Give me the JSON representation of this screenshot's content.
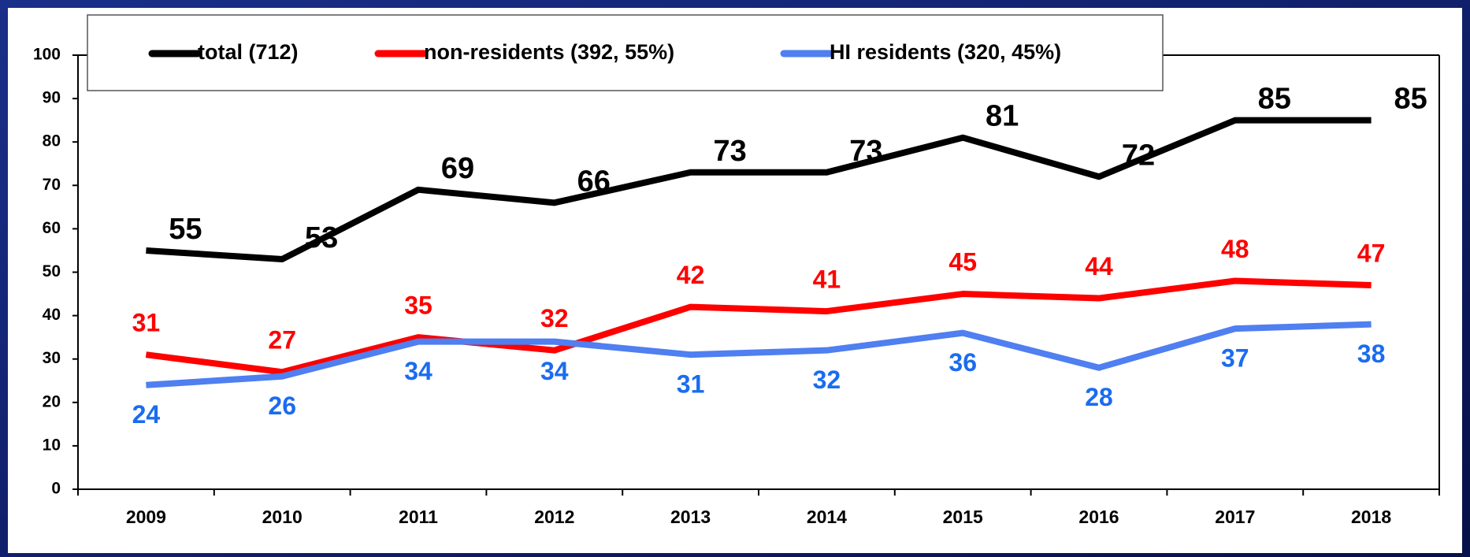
{
  "chart_data": {
    "type": "line",
    "categories": [
      "2009",
      "2010",
      "2011",
      "2012",
      "2013",
      "2014",
      "2015",
      "2016",
      "2017",
      "2018"
    ],
    "series": [
      {
        "name": "total (712)",
        "color": "#000000",
        "label_color": "#000000",
        "values": [
          55,
          53,
          69,
          66,
          73,
          73,
          81,
          72,
          85,
          85
        ]
      },
      {
        "name": "non-residents (392, 55%)",
        "color": "#ff0000",
        "label_color": "#ff0000",
        "values": [
          31,
          27,
          35,
          32,
          42,
          41,
          45,
          44,
          48,
          47
        ]
      },
      {
        "name": "HI residents (320, 45%)",
        "color": "#4f7ff0",
        "label_color": "#1a6cf0",
        "values": [
          24,
          26,
          34,
          34,
          31,
          32,
          36,
          28,
          37,
          38
        ]
      }
    ],
    "ylim": [
      0,
      100
    ],
    "yticks": [
      0,
      10,
      20,
      30,
      40,
      50,
      60,
      70,
      80,
      90,
      100
    ],
    "grid": false
  }
}
